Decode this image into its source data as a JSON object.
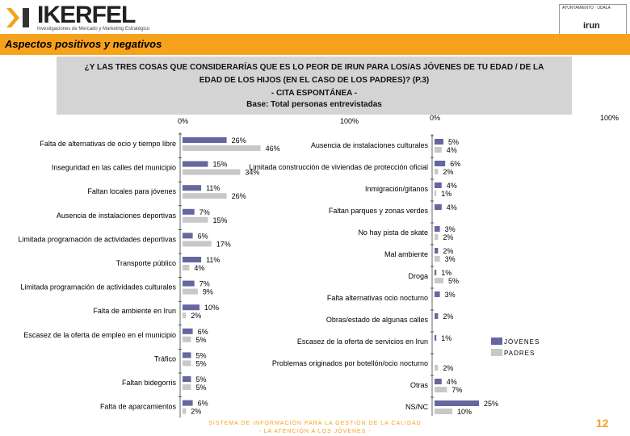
{
  "brand": {
    "name": "IKERFEL",
    "tagline": "Investigaciones de Mercado y Marketing Estratégico",
    "partner_top": "AYUNTAMIENTO · UDALA",
    "partner_name": "irun",
    "accent": "#f7a21c"
  },
  "title": "Aspectos positivos y negativos",
  "question": {
    "line1": "¿Y LAS TRES COSAS QUE CONSIDERARÍAS QUE ES LO PEOR DE IRUN PARA LOS/AS JÓVENES DE TU EDAD / DE LA",
    "line2": "EDAD DE LOS HIJOS (EN EL CASO DE LOS PADRES)? (P.3)",
    "line3": "- CITA ESPONTÁNEA -",
    "line4": "Base: Total personas entrevistadas"
  },
  "footer": {
    "line1": "SISTEMA DE INFORMACIÓN PARA LA GESTIÓN DE LA CALIDAD",
    "line2": "- LA ATENCIÓN A LOS JÓVENES -",
    "page": "12"
  },
  "chart_data": [
    {
      "type": "bar",
      "orientation": "horizontal",
      "xlim": [
        0,
        100
      ],
      "tick_labels": [
        "0%",
        "100%"
      ],
      "series_names": [
        "JÓVENES",
        "PADRES"
      ],
      "series_colors": [
        "#6666a0",
        "#c8c8c8"
      ],
      "categories": [
        "Falta de alternativas de ocio y tiempo libre",
        "Inseguridad en las calles del municipio",
        "Faltan locales para jóvenes",
        "Ausencia de instalaciones deportivas",
        "Limitada programación de actividades deportivas",
        "Transporte público",
        "Limitada programación de actividades culturales",
        "Falta de ambiente en Irun",
        "Escasez de la oferta de empleo en el municipio",
        "Tráfico",
        "Faltan bidegorris",
        "Falta de aparcamientos"
      ],
      "series": [
        {
          "name": "JÓVENES",
          "values": [
            26,
            15,
            11,
            7,
            6,
            11,
            7,
            10,
            6,
            5,
            5,
            6
          ],
          "labels": [
            "26%",
            "15%",
            "11%",
            "7%",
            "6%",
            "11%",
            "7%",
            "10%",
            "6%",
            "5%",
            "5%",
            "6%"
          ]
        },
        {
          "name": "PADRES",
          "values": [
            46,
            34,
            26,
            15,
            17,
            4,
            9,
            2,
            5,
            5,
            5,
            2
          ],
          "labels": [
            "46%",
            "34%",
            "26%",
            "15%",
            "17%",
            "4%",
            "9%",
            "2%",
            "5%",
            "5%",
            "5%",
            "2%"
          ]
        }
      ]
    },
    {
      "type": "bar",
      "orientation": "horizontal",
      "xlim": [
        0,
        100
      ],
      "tick_labels": [
        "0%",
        "100%"
      ],
      "series_names": [
        "JÓVENES",
        "PADRES"
      ],
      "series_colors": [
        "#6666a0",
        "#c8c8c8"
      ],
      "categories": [
        "Ausencia de instalaciones culturales",
        "Limitada construcción de viviendas de protección oficial",
        "Inmigración/gitanos",
        "Faltan parques y zonas verdes",
        "No hay pista de skate",
        "Mal ambiente",
        "Droga",
        "Falta alternativas ocio nocturno",
        "Obras/estado de algunas calles",
        "Escasez de la oferta de servicios en Irun",
        "Problemas originados por botellón/ocio nocturno",
        "Otras",
        "NS/NC"
      ],
      "series": [
        {
          "name": "JÓVENES",
          "values": [
            5,
            6,
            4,
            4,
            3,
            2,
            1,
            3,
            2,
            1,
            0,
            4,
            25
          ],
          "labels": [
            "5%",
            "6%",
            "4%",
            "4%",
            "3%",
            "2%",
            "1%",
            "3%",
            "2%",
            "1%",
            "",
            "4%",
            "25%"
          ]
        },
        {
          "name": "PADRES",
          "values": [
            4,
            2,
            1,
            0,
            2,
            3,
            5,
            0,
            0,
            0,
            2,
            7,
            10
          ],
          "labels": [
            "4%",
            "2%",
            "1%",
            "",
            "2%",
            "3%",
            "5%",
            "",
            "",
            "",
            "2%",
            "7%",
            "10%"
          ]
        }
      ]
    }
  ]
}
